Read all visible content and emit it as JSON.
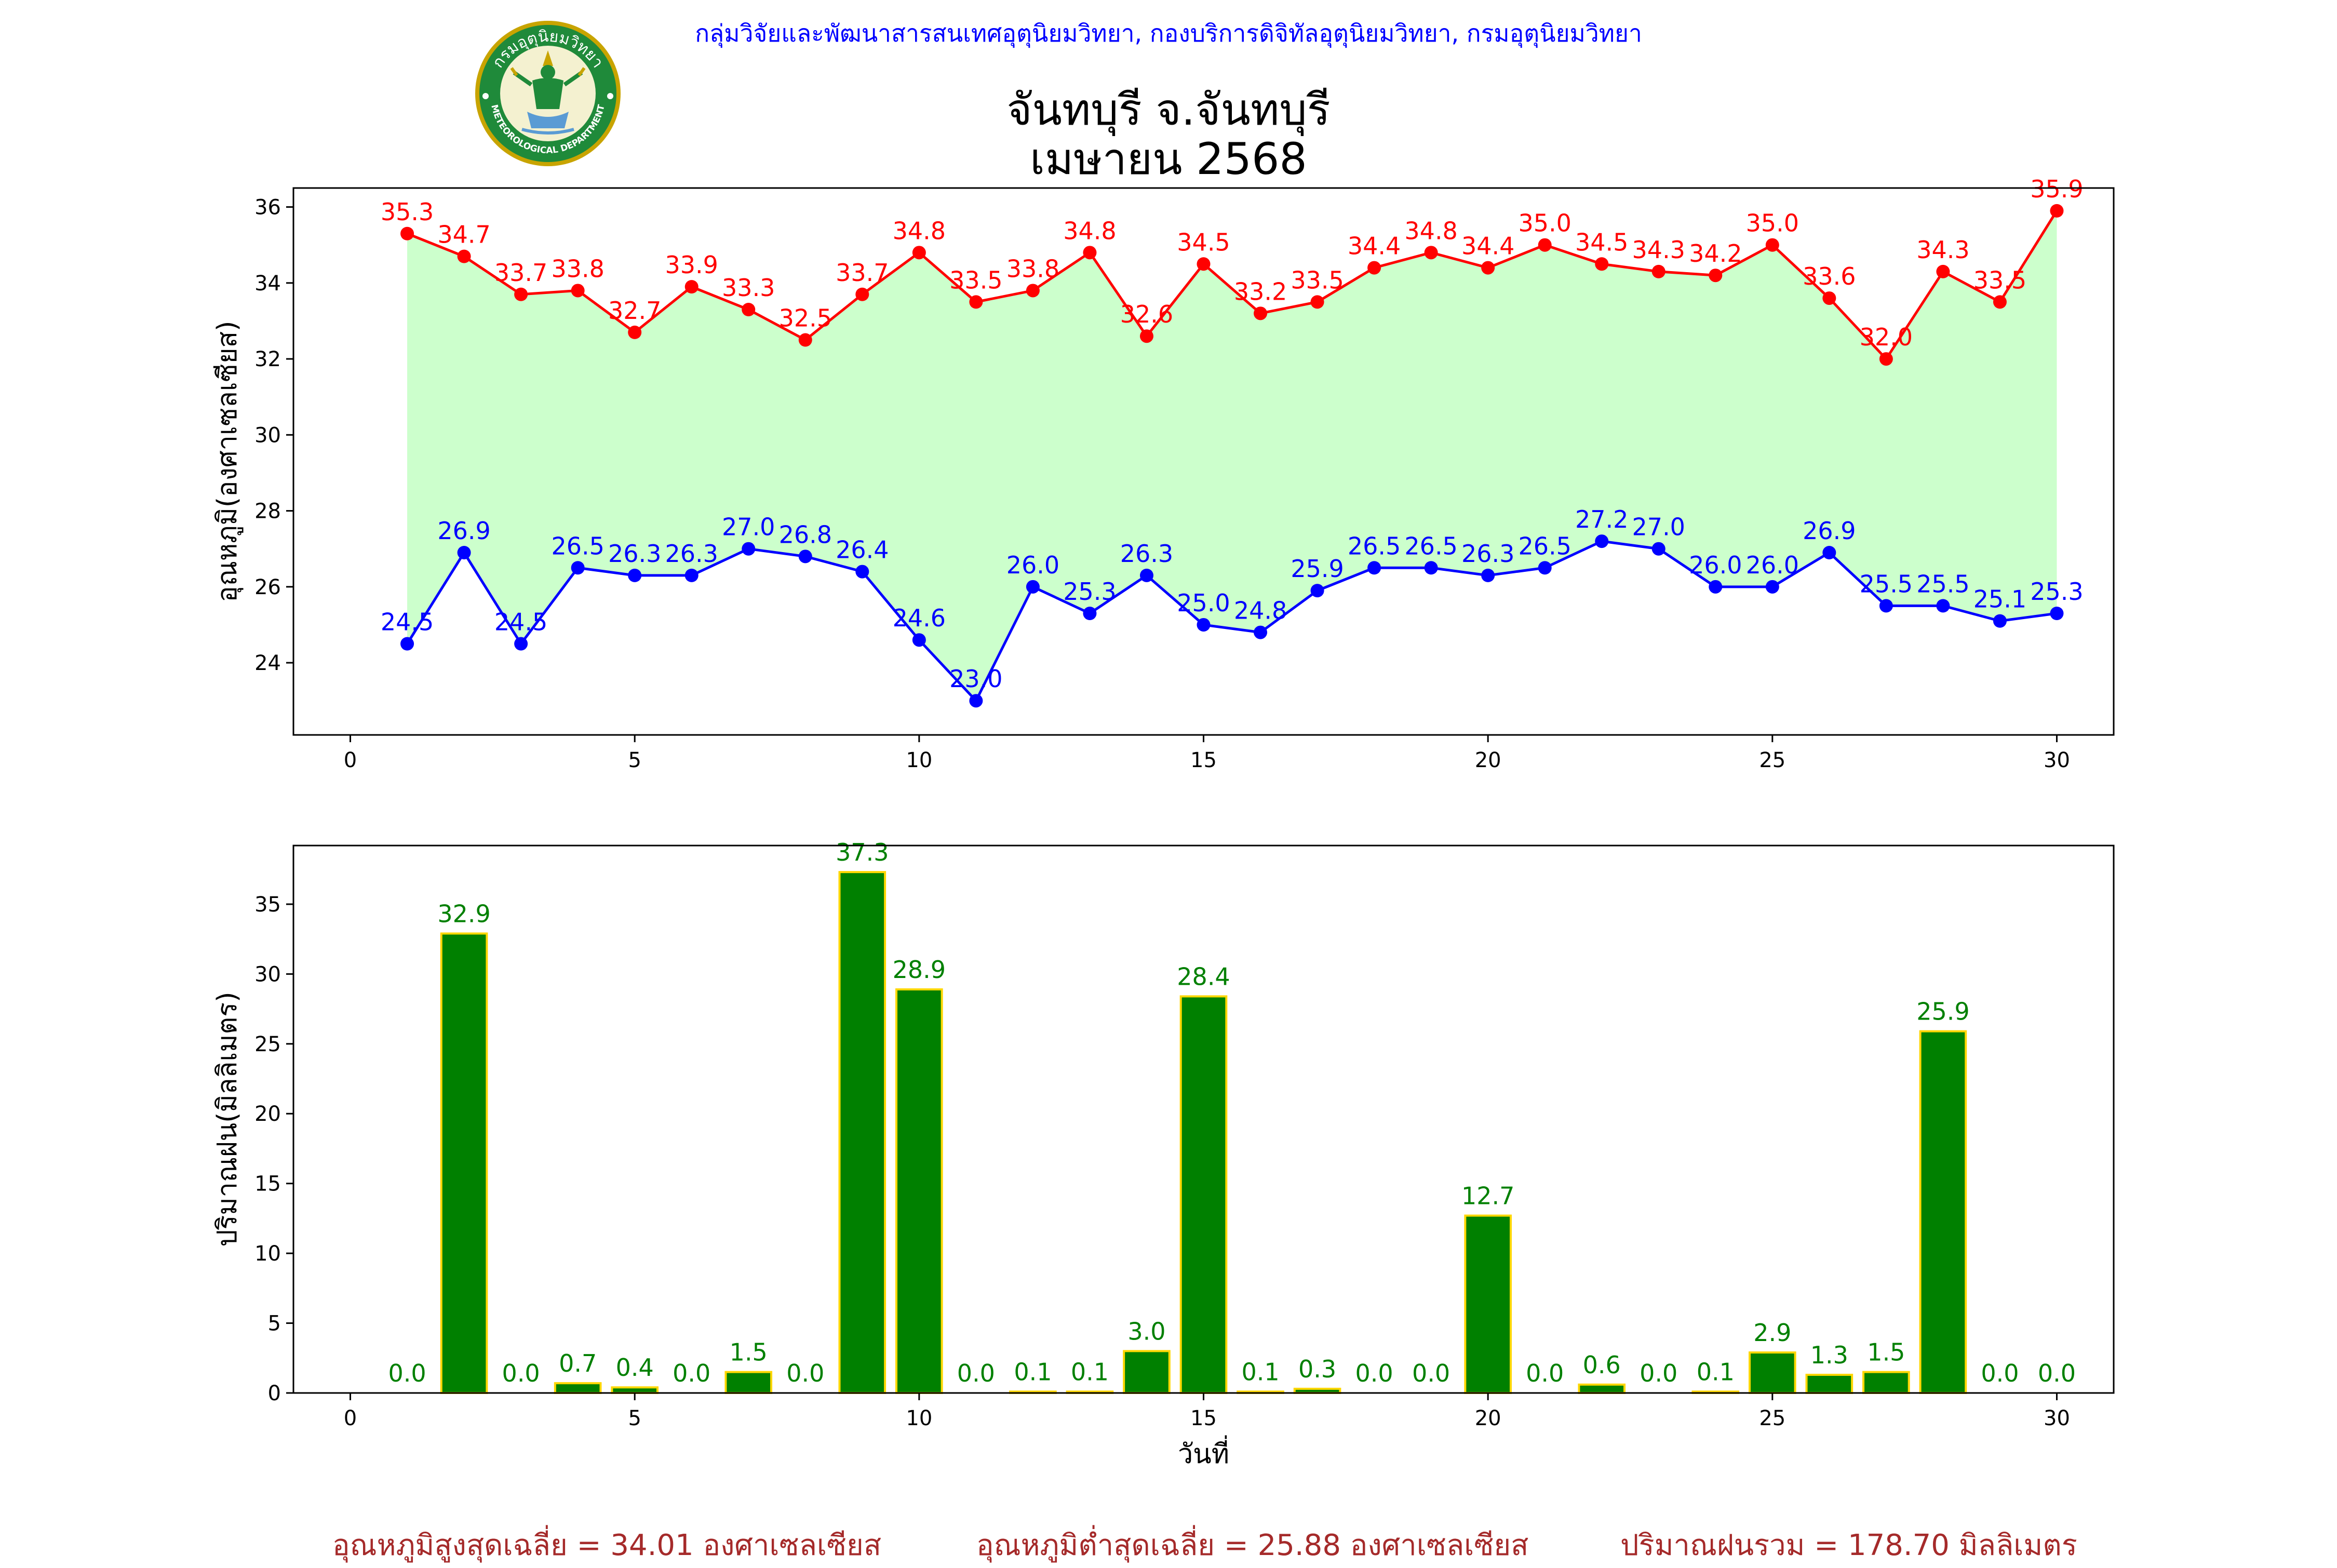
{
  "header": {
    "department_line": "กลุ่มวิจัยและพัฒนาสารสนเทศอุตุนิยมวิทยา, กองบริการดิจิทัลอุตุนิยมวิทยา, กรมอุตุนิยมวิทยา",
    "title_line1": "จันทบุรี จ.จันทบุรี",
    "title_line2": "เมษายน 2568"
  },
  "logo": {
    "text_top": "กรมอุตุนิยมวิทยา",
    "text_bottom": "METEOROLOGICAL DEPARTMENT"
  },
  "footer": {
    "avg_max": "อุณหภูมิสูงสุดเฉลี่ย = 34.01 องศาเซลเซียส",
    "avg_min": "อุณหภูมิต่ำสุดเฉลี่ย = 25.88 องศาเซลเซียส",
    "total_rain": "ปริมาณฝนรวม = 178.70 มิลลิเมตร"
  },
  "colors": {
    "max_line": "#ff0000",
    "min_line": "#0000ff",
    "fill": "#ccffcc",
    "bar": "#008000",
    "bar_edge": "#ffd700",
    "bar_label": "#008000",
    "footer": "#a52a2a",
    "header": "#0000ff"
  },
  "chart_data": [
    {
      "type": "line",
      "ylabel": "อุณหภูมิ(องศาเซลเซียส)",
      "xlabel": "",
      "xlim": [
        -1,
        31
      ],
      "ylim": [
        22.1,
        36.5
      ],
      "xticks": [
        0,
        5,
        10,
        15,
        20,
        25,
        30
      ],
      "yticks": [
        24,
        26,
        28,
        30,
        32,
        34,
        36
      ],
      "fill_between": true,
      "x": [
        1,
        2,
        3,
        4,
        5,
        6,
        7,
        8,
        9,
        10,
        11,
        12,
        13,
        14,
        15,
        16,
        17,
        18,
        19,
        20,
        21,
        22,
        23,
        24,
        25,
        26,
        27,
        28,
        29,
        30
      ],
      "series": [
        {
          "key": "max",
          "values": [
            35.3,
            34.7,
            33.7,
            33.8,
            32.7,
            33.9,
            33.3,
            32.5,
            33.7,
            34.8,
            33.5,
            33.8,
            34.8,
            32.6,
            34.5,
            33.2,
            33.5,
            34.4,
            34.8,
            34.4,
            35.0,
            34.5,
            34.3,
            34.2,
            35.0,
            33.6,
            32.0,
            34.3,
            33.5,
            35.9
          ]
        },
        {
          "key": "min",
          "values": [
            24.5,
            26.9,
            24.5,
            26.5,
            26.3,
            26.3,
            27.0,
            26.8,
            26.4,
            24.6,
            23.0,
            26.0,
            25.3,
            26.3,
            25.0,
            24.8,
            25.9,
            26.5,
            26.5,
            26.3,
            26.5,
            27.2,
            27.0,
            26.0,
            26.0,
            26.9,
            25.5,
            25.5,
            25.1,
            25.3
          ]
        }
      ]
    },
    {
      "type": "bar",
      "ylabel": "ปริมาณฝน(มิลลิเมตร)",
      "xlabel": "วันที่",
      "xlim": [
        -1,
        31
      ],
      "ylim": [
        0,
        39.2
      ],
      "xticks": [
        0,
        5,
        10,
        15,
        20,
        25,
        30
      ],
      "yticks": [
        0,
        5,
        10,
        15,
        20,
        25,
        30,
        35
      ],
      "x": [
        1,
        2,
        3,
        4,
        5,
        6,
        7,
        8,
        9,
        10,
        11,
        12,
        13,
        14,
        15,
        16,
        17,
        18,
        19,
        20,
        21,
        22,
        23,
        24,
        25,
        26,
        27,
        28,
        29,
        30
      ],
      "values": [
        0.0,
        32.9,
        0.0,
        0.7,
        0.4,
        0.0,
        1.5,
        0.0,
        37.3,
        28.9,
        0.0,
        0.1,
        0.1,
        3.0,
        28.4,
        0.1,
        0.3,
        0.0,
        0.0,
        12.7,
        0.0,
        0.6,
        0.0,
        0.1,
        2.9,
        1.3,
        1.5,
        25.9,
        0.0,
        0.0
      ]
    }
  ]
}
